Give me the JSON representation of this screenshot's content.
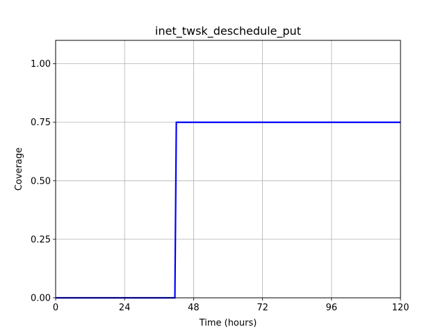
{
  "chart_data": {
    "type": "line",
    "title": "inet_twsk_deschedule_put",
    "xlabel": "Time (hours)",
    "ylabel": "Coverage",
    "xlim": [
      0,
      120
    ],
    "ylim": [
      0,
      1.1
    ],
    "xticks": [
      0,
      24,
      48,
      72,
      96,
      120
    ],
    "xtick_labels": [
      "0",
      "24",
      "48",
      "72",
      "96",
      "120"
    ],
    "yticks": [
      0,
      0.25,
      0.5,
      0.75,
      1.0
    ],
    "ytick_labels": [
      "0.00",
      "0.25",
      "0.50",
      "0.75",
      "1.00"
    ],
    "grid": true,
    "legend": false,
    "series": [
      {
        "color": "#0000ff",
        "x": [
          0,
          41.5,
          42.0,
          120
        ],
        "y": [
          0,
          0,
          0.75,
          0.75
        ]
      }
    ]
  }
}
